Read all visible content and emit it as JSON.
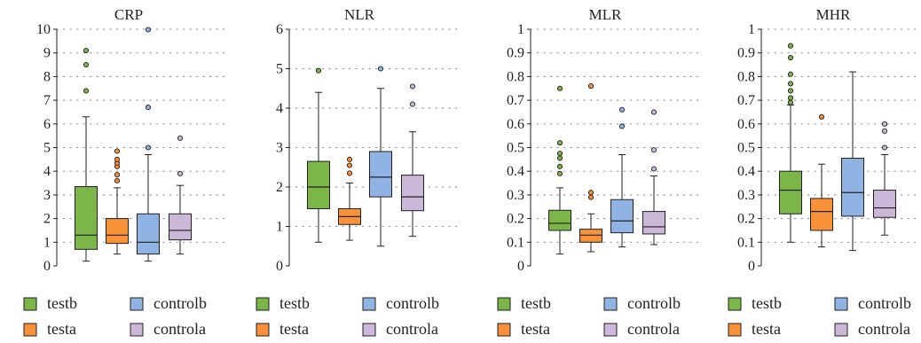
{
  "legend_labels": {
    "testb": "testb",
    "testa": "testa",
    "controlb": "controlb",
    "controla": "controla"
  },
  "colors": {
    "testb": "#7ab648",
    "testa": "#f7923a",
    "controlb": "#8fb4e3",
    "controla": "#cbb8d8"
  },
  "chart_data": [
    {
      "type": "box",
      "title": "CRP",
      "ylim": [
        0,
        10
      ],
      "yticks": [
        0,
        1,
        2,
        3,
        4,
        5,
        6,
        7,
        8,
        9,
        10
      ],
      "ytick_labels": [
        "0",
        "1",
        "2",
        "3",
        "4",
        "5",
        "6",
        "7",
        "8",
        "9",
        "10"
      ],
      "grid": "dotted",
      "legend": "bottom",
      "series": [
        {
          "key": "testb",
          "whisker_low": 0.2,
          "q1": 0.7,
          "median": 1.3,
          "q3": 3.35,
          "whisker_high": 6.3,
          "outliers": [
            7.4,
            8.5,
            9.1
          ]
        },
        {
          "key": "testa",
          "whisker_low": 0.5,
          "q1": 0.95,
          "median": 1.3,
          "q3": 2.0,
          "whisker_high": 3.3,
          "outliers": [
            3.6,
            3.85,
            4.2,
            4.35,
            4.5,
            4.85
          ]
        },
        {
          "key": "controlb",
          "whisker_low": 0.2,
          "q1": 0.5,
          "median": 1.0,
          "q3": 2.2,
          "whisker_high": 4.7,
          "outliers": [
            5.0,
            6.7,
            10.0
          ]
        },
        {
          "key": "controla",
          "whisker_low": 0.5,
          "q1": 1.1,
          "median": 1.5,
          "q3": 2.2,
          "whisker_high": 3.4,
          "outliers": [
            3.9,
            5.4
          ]
        }
      ]
    },
    {
      "type": "box",
      "title": "NLR",
      "ylim": [
        0,
        6
      ],
      "yticks": [
        0,
        1,
        2,
        3,
        4,
        5,
        6
      ],
      "ytick_labels": [
        "0",
        "1",
        "2",
        "3",
        "4",
        "5",
        "6"
      ],
      "grid": "dotted",
      "legend": "bottom",
      "series": [
        {
          "key": "testb",
          "whisker_low": 0.6,
          "q1": 1.45,
          "median": 2.0,
          "q3": 2.65,
          "whisker_high": 4.4,
          "outliers": [
            4.95
          ]
        },
        {
          "key": "testa",
          "whisker_low": 0.65,
          "q1": 1.05,
          "median": 1.25,
          "q3": 1.45,
          "whisker_high": 2.1,
          "outliers": [
            2.35,
            2.55,
            2.7
          ]
        },
        {
          "key": "controlb",
          "whisker_low": 0.5,
          "q1": 1.75,
          "median": 2.25,
          "q3": 2.9,
          "whisker_high": 4.5,
          "outliers": [
            5.0
          ]
        },
        {
          "key": "controla",
          "whisker_low": 0.75,
          "q1": 1.4,
          "median": 1.75,
          "q3": 2.3,
          "whisker_high": 3.4,
          "outliers": [
            4.1,
            4.55
          ]
        }
      ]
    },
    {
      "type": "box",
      "title": "MLR",
      "ylim": [
        0,
        1
      ],
      "yticks": [
        0,
        0.1,
        0.2,
        0.3,
        0.4,
        0.5,
        0.6,
        0.7,
        0.8,
        0.9,
        1
      ],
      "ytick_labels": [
        "0",
        "0.1",
        "0.2",
        "0.3",
        "0.4",
        "0.5",
        "0.6",
        "0.7",
        "0.8",
        "0.9",
        "1"
      ],
      "grid": "dotted",
      "legend": "bottom",
      "series": [
        {
          "key": "testb",
          "whisker_low": 0.05,
          "q1": 0.15,
          "median": 0.18,
          "q3": 0.235,
          "whisker_high": 0.33,
          "outliers": [
            0.39,
            0.42,
            0.455,
            0.475,
            0.52,
            0.75
          ]
        },
        {
          "key": "testa",
          "whisker_low": 0.06,
          "q1": 0.1,
          "median": 0.13,
          "q3": 0.155,
          "whisker_high": 0.22,
          "outliers": [
            0.29,
            0.31,
            0.76
          ]
        },
        {
          "key": "controlb",
          "whisker_low": 0.08,
          "q1": 0.14,
          "median": 0.19,
          "q3": 0.28,
          "whisker_high": 0.47,
          "outliers": [
            0.59,
            0.66
          ]
        },
        {
          "key": "controla",
          "whisker_low": 0.09,
          "q1": 0.135,
          "median": 0.165,
          "q3": 0.23,
          "whisker_high": 0.38,
          "outliers": [
            0.41,
            0.49,
            0.65
          ]
        }
      ]
    },
    {
      "type": "box",
      "title": "MHR",
      "ylim": [
        0,
        1
      ],
      "yticks": [
        0,
        0.1,
        0.2,
        0.3,
        0.4,
        0.5,
        0.6,
        0.7,
        0.8,
        0.9,
        1
      ],
      "ytick_labels": [
        "0",
        "0.1",
        "0.2",
        "0.3",
        "0.4",
        "0.5",
        "0.6",
        "0.7",
        "0.8",
        "0.9",
        "1"
      ],
      "grid": "dotted",
      "legend": "bottom",
      "series": [
        {
          "key": "testb",
          "whisker_low": 0.1,
          "q1": 0.22,
          "median": 0.32,
          "q3": 0.4,
          "whisker_high": 0.68,
          "outliers": [
            0.69,
            0.71,
            0.74,
            0.77,
            0.81,
            0.88,
            0.93
          ]
        },
        {
          "key": "testa",
          "whisker_low": 0.08,
          "q1": 0.15,
          "median": 0.23,
          "q3": 0.285,
          "whisker_high": 0.43,
          "outliers": [
            0.63
          ]
        },
        {
          "key": "controlb",
          "whisker_low": 0.065,
          "q1": 0.21,
          "median": 0.31,
          "q3": 0.455,
          "whisker_high": 0.82,
          "outliers": []
        },
        {
          "key": "controla",
          "whisker_low": 0.13,
          "q1": 0.205,
          "median": 0.245,
          "q3": 0.32,
          "whisker_high": 0.47,
          "outliers": [
            0.5,
            0.57,
            0.6
          ]
        }
      ]
    }
  ]
}
